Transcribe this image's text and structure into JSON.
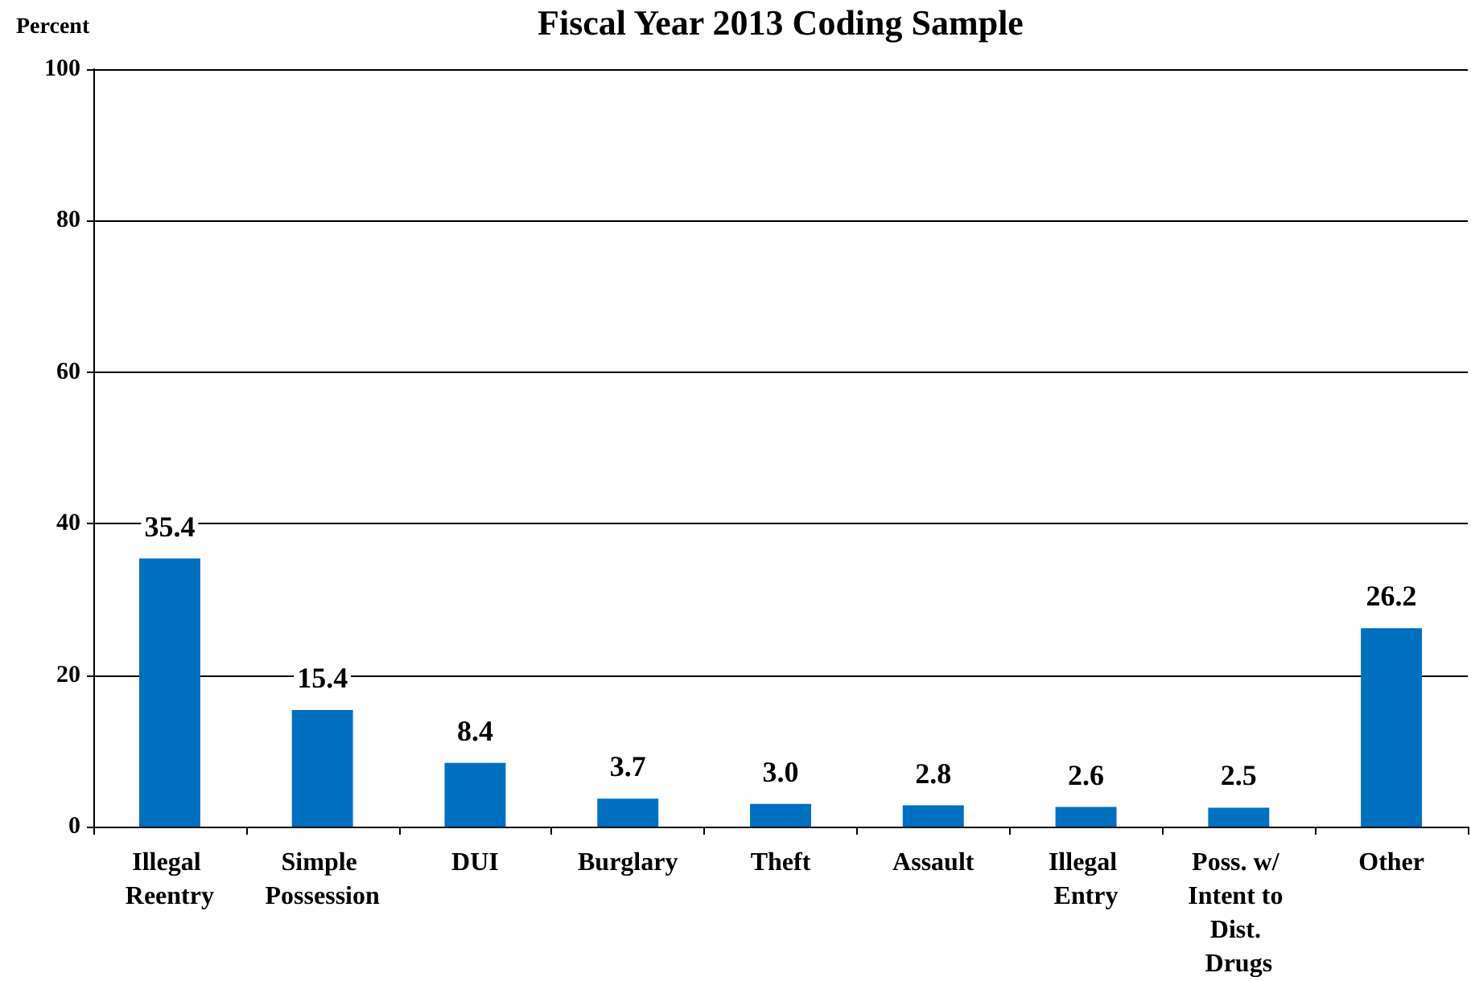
{
  "chart_data": {
    "type": "bar",
    "title": "Fiscal Year 2013 Coding Sample",
    "ylabel": "Percent",
    "categories": [
      "Illegal Reentry",
      "Simple Possession",
      "DUI",
      "Burglary",
      "Theft",
      "Assault",
      "Illegal Entry",
      "Poss. w/ Intent to Dist. Drugs",
      "Other"
    ],
    "values": [
      35.4,
      15.4,
      8.4,
      3.7,
      3.0,
      2.8,
      2.6,
      2.5,
      26.2
    ],
    "value_labels": [
      "35.4",
      "15.4",
      "8.4",
      "3.7",
      "3.0",
      "2.8",
      "2.6",
      "2.5",
      "26.2"
    ],
    "color": "#0070c0",
    "ylim": [
      0,
      100
    ],
    "yticks": [
      0,
      20,
      40,
      60,
      80,
      100
    ],
    "grid": "y"
  }
}
